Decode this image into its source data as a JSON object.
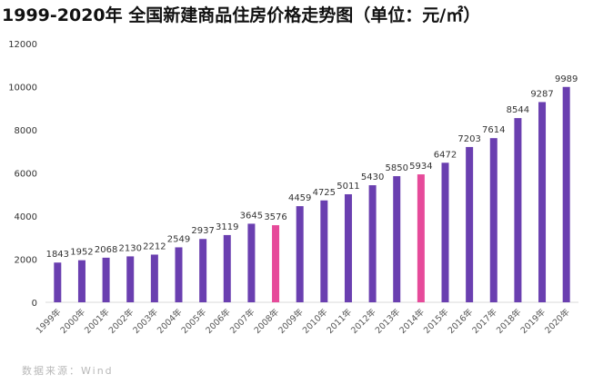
{
  "chart_data": {
    "type": "bar",
    "title": "1999-2020年 全国新建商品住房价格走势图（单位：元/㎡）",
    "categories": [
      "1999年",
      "2000年",
      "2001年",
      "2002年",
      "2003年",
      "2004年",
      "2005年",
      "2006年",
      "2007年",
      "2008年",
      "2009年",
      "2010年",
      "2011年",
      "2012年",
      "2013年",
      "2014年",
      "2015年",
      "2016年",
      "2017年",
      "2018年",
      "2019年",
      "2020年"
    ],
    "values": [
      1843,
      1952,
      2068,
      2130,
      2212,
      2549,
      2937,
      3119,
      3645,
      3576,
      4459,
      4725,
      5011,
      5430,
      5850,
      5934,
      6472,
      7203,
      7614,
      8544,
      9287,
      9989
    ],
    "highlight_categories": [
      "2008年",
      "2014年"
    ],
    "ylim": [
      0,
      12000
    ],
    "yticks": [
      "0",
      "2000",
      "4000",
      "6000",
      "8000",
      "10000",
      "12000"
    ],
    "grid": false,
    "legend": "none",
    "colors": {
      "bar": "#6a3fb0",
      "highlight": "#e64a9a",
      "axis": "#d9d9d9",
      "label": "#333333"
    }
  },
  "source": "数据来源：Wind"
}
